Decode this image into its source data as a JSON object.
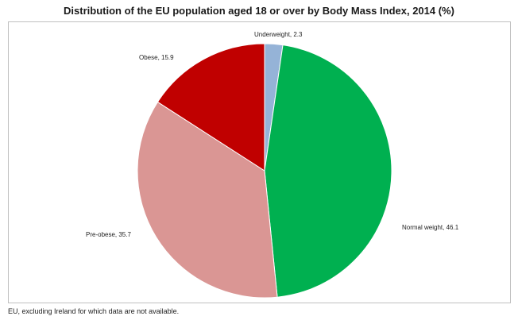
{
  "chart_data": {
    "type": "pie",
    "title": "Distribution of the EU population aged 18 or over by Body Mass Index, 2014 (%)",
    "slices": [
      {
        "label": "Underweight, 2.3",
        "category": "Underweight",
        "value": 2.3,
        "color": "#95b3d7"
      },
      {
        "label": "Normal weight, 46.1",
        "category": "Normal weight",
        "value": 46.1,
        "color": "#00b050"
      },
      {
        "label": "Pre-obese, 35.7",
        "category": "Pre-obese",
        "value": 35.7,
        "color": "#da9694"
      },
      {
        "label": "Obese, 15.9",
        "category": "Obese",
        "value": 15.9,
        "color": "#c00000"
      }
    ],
    "start": "top",
    "direction": "clockwise",
    "legend": "none",
    "footnote": "EU, excluding Ireland for which data are not available."
  }
}
